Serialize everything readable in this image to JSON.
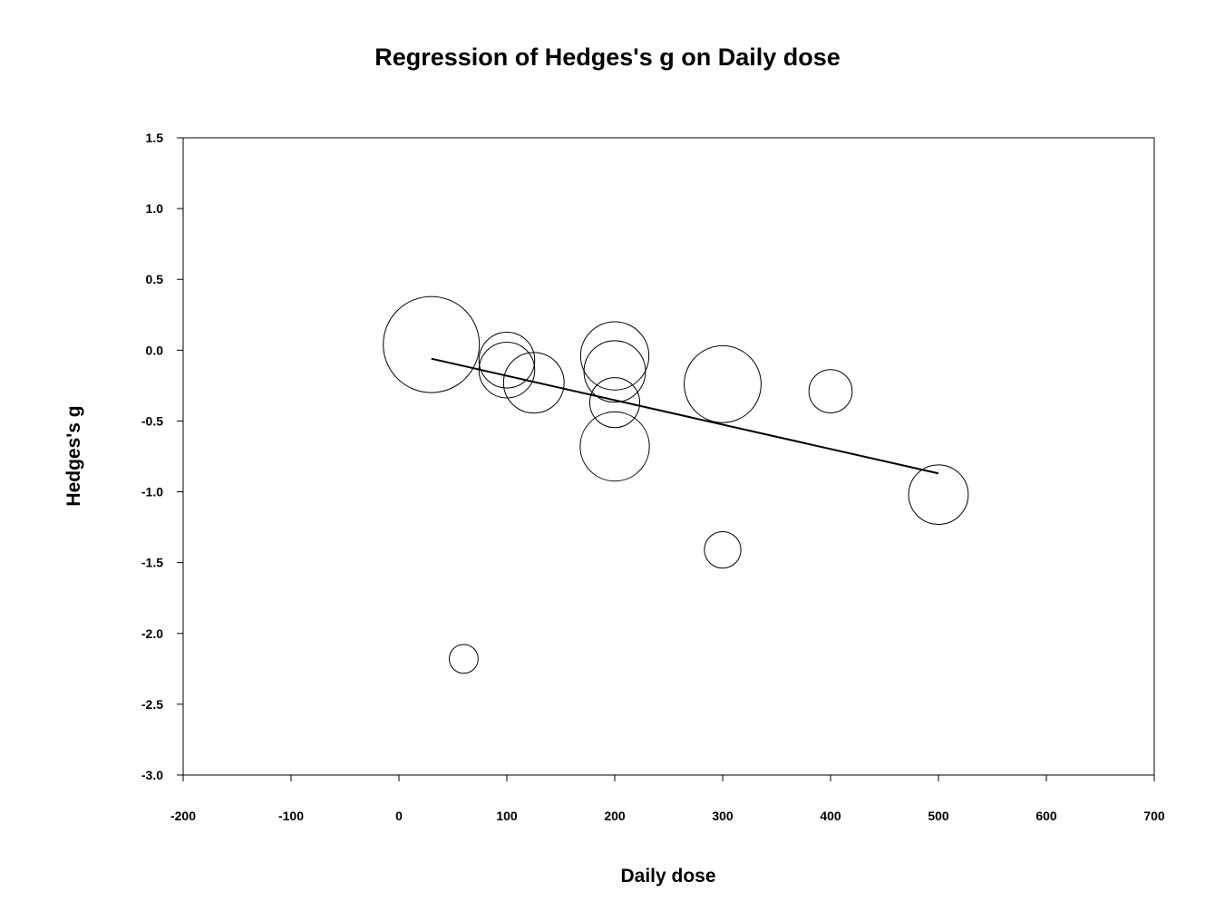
{
  "chart_data": {
    "type": "scatter",
    "title": "Regression of Hedges's g on Daily dose",
    "xlabel": "Daily dose",
    "ylabel": "Hedges's g",
    "xlim": [
      -200,
      700
    ],
    "ylim": [
      -3.0,
      1.5
    ],
    "xticks": [
      -200,
      -100,
      0,
      100,
      200,
      300,
      400,
      500,
      600,
      700
    ],
    "yticks": [
      1.5,
      1.0,
      0.5,
      0.0,
      -0.5,
      -1.0,
      -1.5,
      -2.0,
      -2.5,
      -3.0
    ],
    "xtick_labels": [
      "-200",
      "-100",
      "0",
      "100",
      "200",
      "300",
      "400",
      "500",
      "600",
      "700"
    ],
    "ytick_labels": [
      "1.5",
      "1.0",
      "0.5",
      "0.0",
      "-0.5",
      "-1.0",
      "-1.5",
      "-2.0",
      "-2.5",
      "-3.0"
    ],
    "grid": false,
    "bubble_size_note": "relative study weight",
    "points": [
      {
        "x": 30,
        "y": 0.04,
        "weight": 1.0
      },
      {
        "x": 60,
        "y": -2.18,
        "weight": 0.3
      },
      {
        "x": 100,
        "y": -0.07,
        "weight": 0.58
      },
      {
        "x": 100,
        "y": -0.14,
        "weight": 0.58
      },
      {
        "x": 125,
        "y": -0.23,
        "weight": 0.63
      },
      {
        "x": 200,
        "y": -0.04,
        "weight": 0.71
      },
      {
        "x": 200,
        "y": -0.15,
        "weight": 0.64
      },
      {
        "x": 200,
        "y": -0.37,
        "weight": 0.52
      },
      {
        "x": 200,
        "y": -0.68,
        "weight": 0.72
      },
      {
        "x": 300,
        "y": -0.24,
        "weight": 0.8
      },
      {
        "x": 300,
        "y": -1.41,
        "weight": 0.38
      },
      {
        "x": 400,
        "y": -0.29,
        "weight": 0.45
      },
      {
        "x": 500,
        "y": -1.02,
        "weight": 0.62
      }
    ],
    "regression_line": {
      "x": [
        30,
        500
      ],
      "y": [
        -0.06,
        -0.87
      ]
    }
  }
}
